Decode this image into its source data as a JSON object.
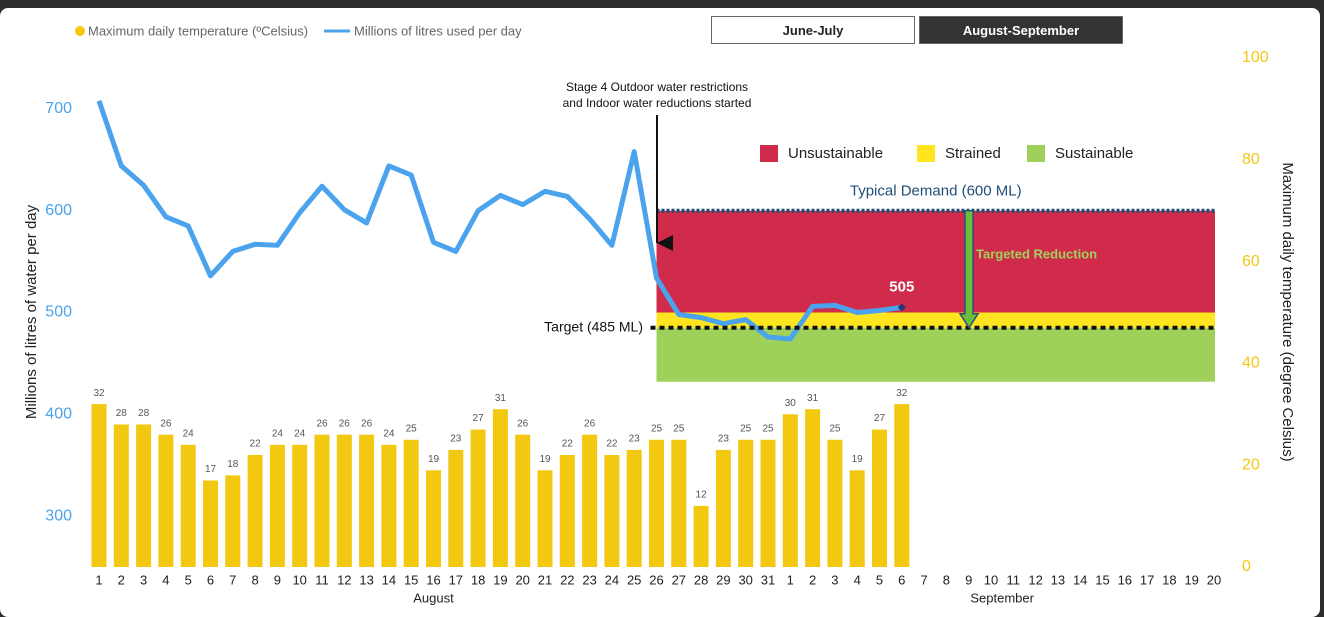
{
  "buttons": [
    {
      "label": "June-July",
      "selected": false
    },
    {
      "label": "August-September",
      "selected": true
    }
  ],
  "chart_data": {
    "type": "combo",
    "series": [
      {
        "name": "Maximum daily temperature (ºCelsius)",
        "type": "bar",
        "axis": "y2",
        "color": "#f2c811",
        "values": [
          32,
          28,
          28,
          26,
          24,
          17,
          18,
          22,
          24,
          24,
          26,
          26,
          26,
          24,
          25,
          19,
          23,
          27,
          31,
          26,
          19,
          22,
          26,
          22,
          23,
          25,
          25,
          12,
          23,
          25,
          25,
          30,
          31,
          25,
          19,
          27,
          32,
          null,
          null,
          null,
          null,
          null,
          null,
          null,
          null,
          null,
          null,
          null,
          null,
          null,
          null
        ]
      },
      {
        "name": "Millions of litres used per day",
        "type": "line",
        "axis": "y",
        "color": "#4aa3ec",
        "values": [
          708,
          644,
          625,
          594,
          585,
          536,
          560,
          567,
          566,
          598,
          624,
          601,
          588,
          644,
          635,
          569,
          560,
          600,
          615,
          606,
          619,
          614,
          592,
          566,
          658,
          534,
          498,
          495,
          489,
          493,
          476,
          474,
          506,
          507,
          500,
          502,
          505,
          null,
          null,
          null,
          null,
          null,
          null,
          null,
          null,
          null,
          null,
          null,
          null,
          null,
          null
        ]
      }
    ],
    "categories": [
      "1",
      "2",
      "3",
      "4",
      "5",
      "6",
      "7",
      "8",
      "9",
      "10",
      "11",
      "12",
      "13",
      "14",
      "15",
      "16",
      "17",
      "18",
      "19",
      "20",
      "21",
      "22",
      "23",
      "24",
      "25",
      "26",
      "27",
      "28",
      "29",
      "30",
      "31",
      "1",
      "2",
      "3",
      "4",
      "5",
      "6",
      "7",
      "8",
      "9",
      "10",
      "11",
      "12",
      "13",
      "14",
      "15",
      "16",
      "17",
      "18",
      "19",
      "20"
    ],
    "x_groups": [
      {
        "label": "August",
        "span": 31
      },
      {
        "label": "September",
        "span": 20
      }
    ],
    "ylabel": "Millions of litres of water per day",
    "y2label": "Maximum daily temperature (degree Celsius)",
    "ylim": [
      250,
      750
    ],
    "yticks": [
      300,
      400,
      500,
      600,
      700
    ],
    "y2lim": [
      0,
      100
    ],
    "y2ticks": [
      0,
      20,
      40,
      60,
      80,
      100
    ],
    "zones": [
      {
        "name": "Unsustainable",
        "color": "#d12b4b",
        "from": 500,
        "to": 600
      },
      {
        "name": "Strained",
        "color": "#ffe51f",
        "from": 485,
        "to": 500
      },
      {
        "name": "Sustainable",
        "color": "#9fd05a",
        "from": 432,
        "to": 485
      }
    ],
    "reference_lines": [
      {
        "label": "Typical Demand (600 ML)",
        "value": 600
      },
      {
        "label": "Target (485 ML)",
        "value": 485
      }
    ],
    "annotations": {
      "event_lines": [
        "Stage 4 Outdoor water restrictions",
        "and Indoor water reductions started"
      ],
      "reduction": "Targeted Reduction"
    }
  }
}
